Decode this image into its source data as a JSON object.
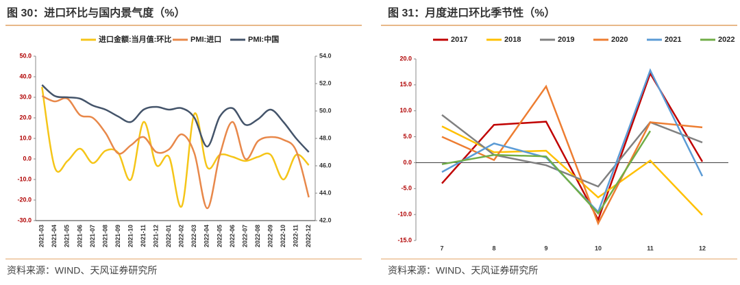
{
  "chart_data": [
    {
      "type": "line",
      "title": "图 30：进口环比与国内景气度（%）",
      "source": "资料来源：WIND、天风证券研究所",
      "smooth": true,
      "categories": [
        "2021-03",
        "2021-04",
        "2021-05",
        "2021-06",
        "2021-07",
        "2021-08",
        "2021-09",
        "2021-10",
        "2021-11",
        "2021-12",
        "2022-01",
        "2022-02",
        "2022-03",
        "2022-04",
        "2022-05",
        "2022-06",
        "2022-07",
        "2022-08",
        "2022-09",
        "2022-10",
        "2022-11",
        "2022-12"
      ],
      "series": [
        {
          "name": "进口金额:当月值:环比",
          "color": "#f5c518",
          "values": [
            35,
            -4,
            -1,
            5,
            -2,
            4,
            3,
            -10,
            18,
            -3,
            1,
            -23,
            22,
            -4,
            2,
            1,
            -1,
            1,
            2,
            -10,
            2,
            -3
          ]
        },
        {
          "name": "PMI:进口",
          "color": "#e8884a",
          "axis": "y2",
          "values": [
            51.1,
            50.7,
            50.9,
            49.7,
            49.5,
            48.4,
            46.9,
            47.5,
            48.1,
            47.0,
            47.2,
            48.3,
            46.9,
            42.9,
            46.8,
            49.2,
            46.5,
            47.8,
            48.1,
            47.9,
            47.1,
            43.7
          ]
        },
        {
          "name": "PMI:中国",
          "color": "#44546a",
          "axis": "y2",
          "values": [
            51.9,
            51.1,
            51.0,
            50.9,
            50.4,
            50.1,
            49.6,
            49.2,
            50.1,
            50.3,
            50.1,
            50.2,
            49.5,
            47.4,
            49.6,
            50.2,
            49.0,
            49.4,
            50.1,
            49.2,
            48.0,
            47.0
          ]
        }
      ],
      "ylim": [
        -30,
        50
      ],
      "yticks": [
        {
          "value": -30,
          "label": "-30.0"
        },
        {
          "value": -20,
          "label": "-20.0"
        },
        {
          "value": -10,
          "label": "-10.0"
        },
        {
          "value": 0,
          "label": "0.0"
        },
        {
          "value": 10,
          "label": "10.0"
        },
        {
          "value": 20,
          "label": "20.0"
        },
        {
          "value": 30,
          "label": "30.0"
        },
        {
          "value": 40,
          "label": "40.0"
        },
        {
          "value": 50,
          "label": "50.0"
        }
      ],
      "y2lim": [
        42,
        54
      ],
      "y2ticks": [
        {
          "value": 42,
          "label": "42.0"
        },
        {
          "value": 44,
          "label": "44.0"
        },
        {
          "value": 46,
          "label": "46.0"
        },
        {
          "value": 48,
          "label": "48.0"
        },
        {
          "value": 50,
          "label": "50.0"
        },
        {
          "value": 52,
          "label": "52.0"
        },
        {
          "value": 54,
          "label": "54.0"
        }
      ]
    },
    {
      "type": "line",
      "title": "图 31：月度进口环比季节性（%）",
      "source": "资料来源：WIND、天风证券研究所",
      "smooth": false,
      "categories": [
        "7",
        "8",
        "9",
        "10",
        "11",
        "12"
      ],
      "series": [
        {
          "name": "2017",
          "color": "#c00000",
          "values": [
            -4,
            7.3,
            7.9,
            -11,
            17.2,
            0.2
          ]
        },
        {
          "name": "2018",
          "color": "#ffc000",
          "values": [
            7,
            2,
            2.3,
            -6.7,
            0.4,
            -10.1
          ]
        },
        {
          "name": "2019",
          "color": "#808080",
          "values": [
            9.2,
            1.5,
            -0.5,
            -4.6,
            7.8,
            3.9
          ]
        },
        {
          "name": "2020",
          "color": "#ed7d31",
          "values": [
            5,
            0.5,
            14.7,
            -11.7,
            7.8,
            6.8
          ]
        },
        {
          "name": "2021",
          "color": "#5b9bd5",
          "values": [
            -1.8,
            3.7,
            1.0,
            -9.5,
            17.8,
            -2.6
          ]
        },
        {
          "name": "2022",
          "color": "#70ad47",
          "values": [
            -0.3,
            1.5,
            1.2,
            -9.8,
            6.1,
            null
          ]
        }
      ],
      "ylim": [
        -15,
        20
      ],
      "yticks": [
        {
          "value": -15,
          "label": "-15.0"
        },
        {
          "value": -10,
          "label": "-10.0"
        },
        {
          "value": -5,
          "label": "-5.0"
        },
        {
          "value": 0,
          "label": "0.0"
        },
        {
          "value": 5,
          "label": "5.0"
        },
        {
          "value": 10,
          "label": "10.0"
        },
        {
          "value": 15,
          "label": "15.0"
        },
        {
          "value": 20,
          "label": "20.0"
        }
      ]
    }
  ]
}
